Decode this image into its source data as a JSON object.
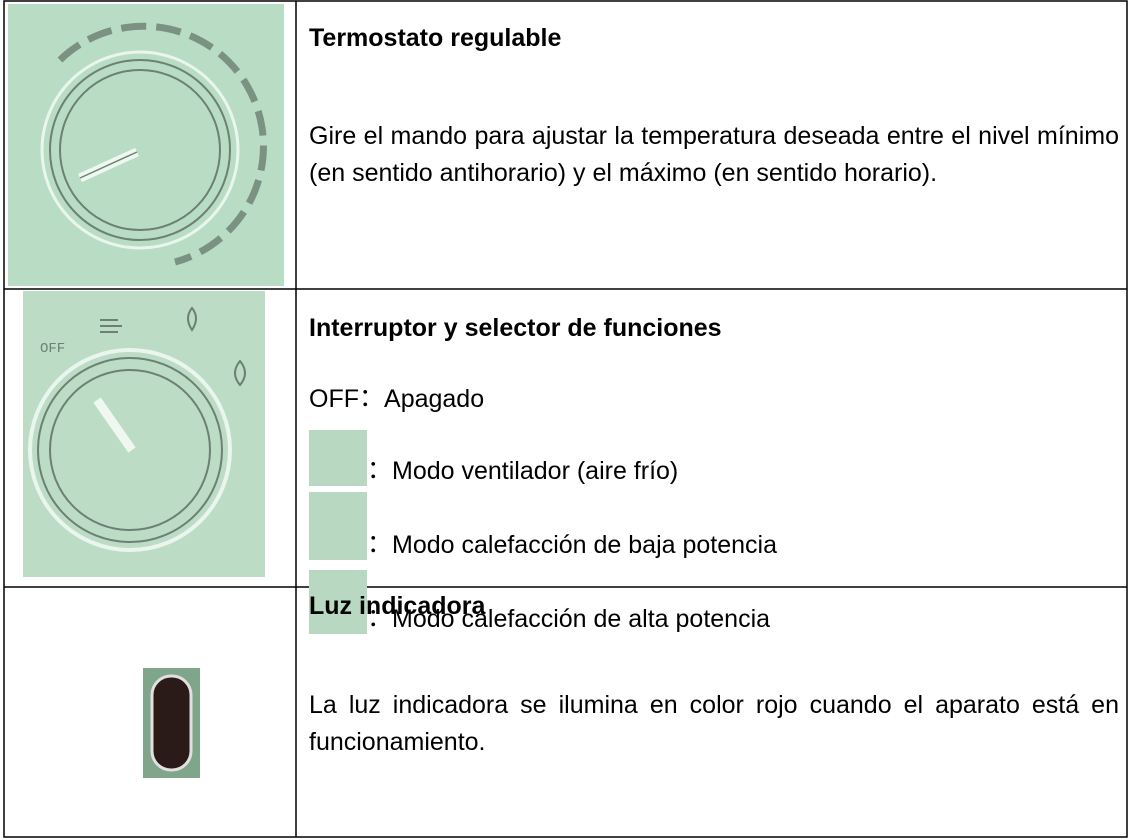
{
  "table": {
    "rows": [
      {
        "title": "Termostato regulable",
        "description": "Gire el mando para ajustar la temperatura deseada entre el nivel mínimo (en sentido antihorario) y el máximo (en sentido horario)."
      },
      {
        "title": "Interruptor y selector de funciones",
        "image_label": "OFF",
        "items": [
          {
            "label": "OFF",
            "separator": "：",
            "text": "Apagado"
          },
          {
            "separator": "：",
            "text": "Modo ventilador (aire frío)"
          },
          {
            "separator": "：",
            "text": "Modo calefacción de baja potencia"
          },
          {
            "separator": "：",
            "text": "Modo calefacción de alta potencia"
          }
        ]
      },
      {
        "title": "Luz indicadora",
        "description": "La luz indicadora se ilumina en color rojo cuando el aparato está en funcionamiento."
      }
    ]
  }
}
